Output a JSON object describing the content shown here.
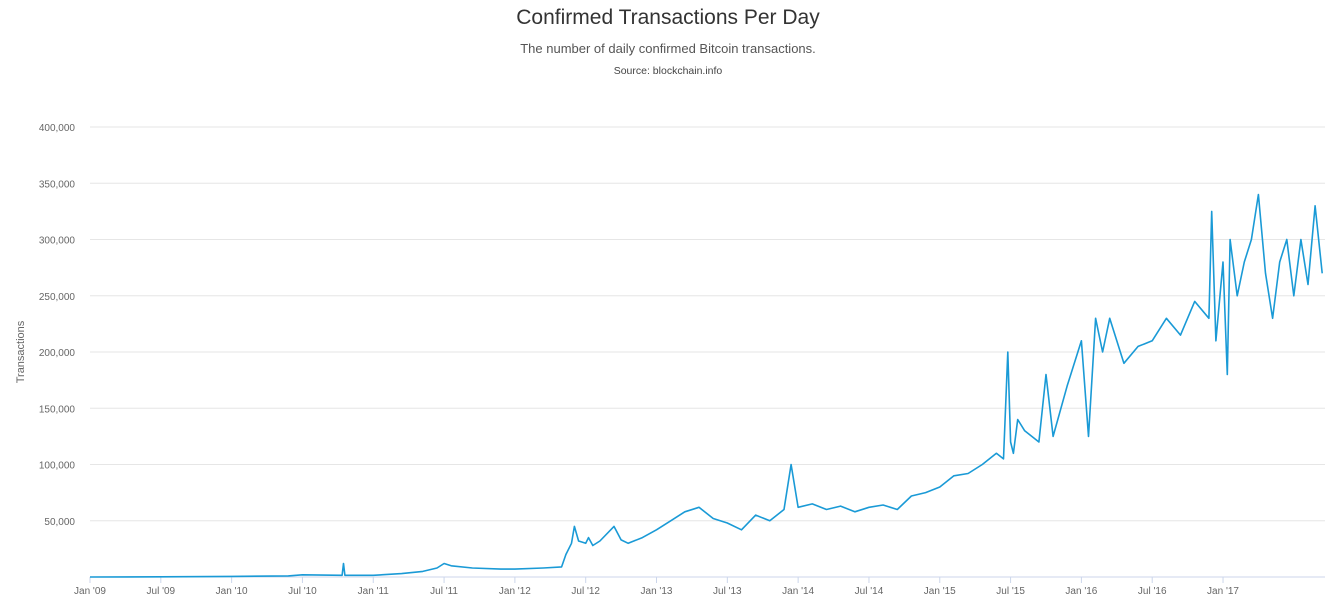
{
  "chart_data": {
    "type": "line",
    "title": "Confirmed Transactions Per Day",
    "subtitle": "The number of daily confirmed Bitcoin transactions.",
    "source": "Source: blockchain.info",
    "xlabel": "",
    "ylabel": "Transactions",
    "ylim": [
      0,
      400000
    ],
    "xlim": [
      2009.0,
      2017.72
    ],
    "grid": true,
    "legend": "none",
    "y_ticks": [
      {
        "value": 50000,
        "label": "50,000"
      },
      {
        "value": 100000,
        "label": "100,000"
      },
      {
        "value": 150000,
        "label": "150,000"
      },
      {
        "value": 200000,
        "label": "200,000"
      },
      {
        "value": 250000,
        "label": "250,000"
      },
      {
        "value": 300000,
        "label": "300,000"
      },
      {
        "value": 350000,
        "label": "350,000"
      },
      {
        "value": 400000,
        "label": "400,000"
      }
    ],
    "x_ticks": [
      {
        "value": 2009.0,
        "label": "Jan '09"
      },
      {
        "value": 2009.5,
        "label": "Jul '09"
      },
      {
        "value": 2010.0,
        "label": "Jan '10"
      },
      {
        "value": 2010.5,
        "label": "Jul '10"
      },
      {
        "value": 2011.0,
        "label": "Jan '11"
      },
      {
        "value": 2011.5,
        "label": "Jul '11"
      },
      {
        "value": 2012.0,
        "label": "Jan '12"
      },
      {
        "value": 2012.5,
        "label": "Jul '12"
      },
      {
        "value": 2013.0,
        "label": "Jan '13"
      },
      {
        "value": 2013.5,
        "label": "Jul '13"
      },
      {
        "value": 2014.0,
        "label": "Jan '14"
      },
      {
        "value": 2014.5,
        "label": "Jul '14"
      },
      {
        "value": 2015.0,
        "label": "Jan '15"
      },
      {
        "value": 2015.5,
        "label": "Jul '15"
      },
      {
        "value": 2016.0,
        "label": "Jan '16"
      },
      {
        "value": 2016.5,
        "label": "Jul '16"
      },
      {
        "value": 2017.0,
        "label": "Jan '17"
      }
    ],
    "series": [
      {
        "name": "Transactions",
        "color": "#1a9ad6",
        "x": [
          2009.0,
          2009.5,
          2010.0,
          2010.4,
          2010.5,
          2010.78,
          2010.79,
          2010.8,
          2011.0,
          2011.2,
          2011.35,
          2011.45,
          2011.5,
          2011.55,
          2011.7,
          2011.9,
          2012.0,
          2012.2,
          2012.33,
          2012.36,
          2012.4,
          2012.42,
          2012.45,
          2012.5,
          2012.52,
          2012.55,
          2012.6,
          2012.7,
          2012.75,
          2012.8,
          2012.9,
          2013.0,
          2013.1,
          2013.2,
          2013.3,
          2013.4,
          2013.5,
          2013.6,
          2013.7,
          2013.8,
          2013.9,
          2013.95,
          2014.0,
          2014.1,
          2014.2,
          2014.3,
          2014.4,
          2014.5,
          2014.6,
          2014.7,
          2014.8,
          2014.9,
          2015.0,
          2015.1,
          2015.2,
          2015.3,
          2015.4,
          2015.45,
          2015.48,
          2015.5,
          2015.52,
          2015.55,
          2015.6,
          2015.7,
          2015.75,
          2015.8,
          2015.9,
          2016.0,
          2016.05,
          2016.1,
          2016.15,
          2016.2,
          2016.3,
          2016.4,
          2016.5,
          2016.6,
          2016.7,
          2016.8,
          2016.9,
          2016.92,
          2016.95,
          2017.0,
          2017.03,
          2017.05,
          2017.1,
          2017.15,
          2017.2,
          2017.25,
          2017.3,
          2017.35,
          2017.4,
          2017.45,
          2017.5,
          2017.55,
          2017.6,
          2017.65,
          2017.7
        ],
        "values": [
          0,
          200,
          500,
          1000,
          2000,
          1500,
          12000,
          1500,
          1500,
          3000,
          5000,
          8000,
          12000,
          10000,
          8000,
          7000,
          7000,
          8000,
          9000,
          20000,
          30000,
          45000,
          32000,
          30000,
          35000,
          28000,
          32000,
          45000,
          33000,
          30000,
          35000,
          42000,
          50000,
          58000,
          62000,
          52000,
          48000,
          42000,
          55000,
          50000,
          60000,
          100000,
          62000,
          65000,
          60000,
          63000,
          58000,
          62000,
          64000,
          60000,
          72000,
          75000,
          80000,
          90000,
          92000,
          100000,
          110000,
          105000,
          200000,
          120000,
          110000,
          140000,
          130000,
          120000,
          180000,
          125000,
          170000,
          210000,
          125000,
          230000,
          200000,
          230000,
          190000,
          205000,
          210000,
          230000,
          215000,
          245000,
          230000,
          325000,
          210000,
          280000,
          180000,
          300000,
          250000,
          280000,
          300000,
          340000,
          270000,
          230000,
          280000,
          300000,
          250000,
          300000,
          260000,
          330000,
          270000
        ]
      }
    ]
  }
}
